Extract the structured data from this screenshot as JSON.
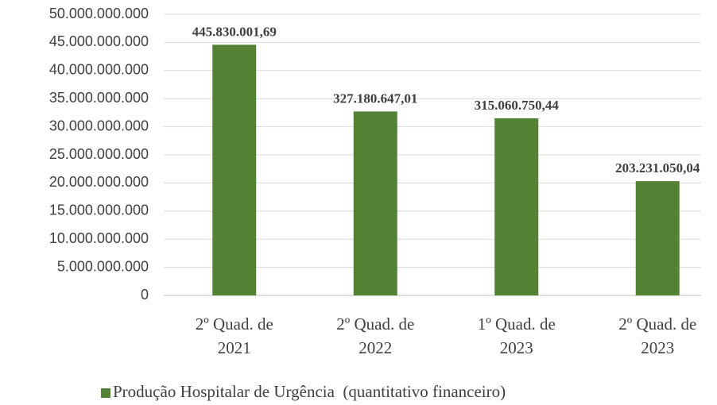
{
  "chart_data": {
    "type": "bar",
    "categories": [
      "2º Quad. de 2021",
      "2º Quad. de 2022",
      "1º Quad. de 2023",
      "2º Quad. de 2023"
    ],
    "series": [
      {
        "name": "Produção Hospitalar de Urgência  (quantitativo financeiro)",
        "color": "#548235",
        "values": [
          44583000169,
          32718064701,
          31506075044,
          20323105004
        ],
        "value_labels": [
          "445.830.001,69",
          "327.180.647,01",
          "315.060.750,44",
          "203.231.050,04"
        ]
      }
    ],
    "ylim": [
      0,
      50000000000
    ],
    "yticks": [
      0,
      {
        "value": 5000000000,
        "label": "5.000.000.000"
      },
      {
        "value": 10000000000,
        "label": "10.000.000.000"
      },
      {
        "value": 15000000000,
        "label": "15.000.000.000"
      },
      {
        "value": 20000000000,
        "label": "20.000.000.000"
      },
      {
        "value": 25000000000,
        "label": "25.000.000.000"
      },
      {
        "value": 30000000000,
        "label": "30.000.000.000"
      },
      {
        "value": 35000000000,
        "label": "35.000.000.000"
      },
      {
        "value": 40000000000,
        "label": "40.000.000.000"
      },
      {
        "value": 45000000000,
        "label": "45.000.000.000"
      },
      {
        "value": 50000000000,
        "label": "50.000.000.000"
      }
    ],
    "grid": true,
    "legend": "bottom"
  }
}
